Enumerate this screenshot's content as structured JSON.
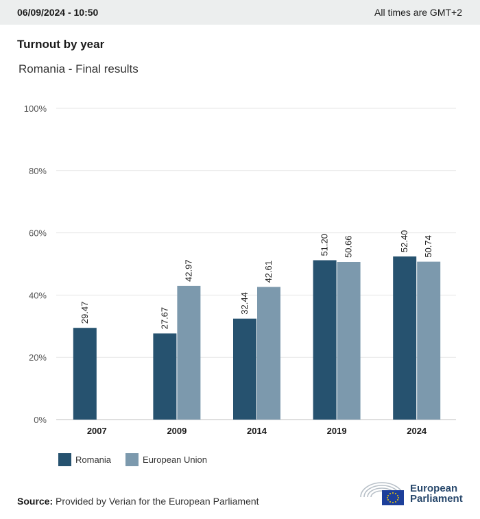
{
  "header": {
    "timestamp": "06/09/2024 - 10:50",
    "timezone_note": "All times are GMT+2"
  },
  "title": "Turnout by year",
  "subtitle": "Romania - Final results",
  "colors": {
    "romania": "#26526f",
    "eu": "#7c99ad",
    "grid": "#e6e6e6",
    "axis": "#bfbfbf",
    "brand": "#27476b"
  },
  "chart_data": {
    "type": "bar",
    "categories": [
      "2007",
      "2009",
      "2014",
      "2019",
      "2024"
    ],
    "series": [
      {
        "name": "Romania",
        "values": [
          29.47,
          27.67,
          32.44,
          51.2,
          52.4
        ],
        "labels": [
          "29.47",
          "27.67",
          "32.44",
          "51.20",
          "52.40"
        ]
      },
      {
        "name": "European Union",
        "values": [
          null,
          42.97,
          42.61,
          50.66,
          50.74
        ],
        "labels": [
          "",
          "42.97",
          "42.61",
          "50.66",
          "50.74"
        ]
      }
    ],
    "ylim": [
      0,
      100
    ],
    "yticks": [
      0,
      20,
      40,
      60,
      80,
      100
    ],
    "ytick_labels": [
      "0%",
      "20%",
      "40%",
      "60%",
      "80%",
      "100%"
    ],
    "grid": true,
    "legend_position": "bottom-left"
  },
  "legend": {
    "romania_label": "Romania",
    "eu_label": "European Union"
  },
  "source": {
    "label": "Source:",
    "text": "Provided by Verian for the European Parliament"
  },
  "logo": {
    "line1": "European",
    "line2": "Parliament",
    "icon": "european-parliament-logo"
  }
}
